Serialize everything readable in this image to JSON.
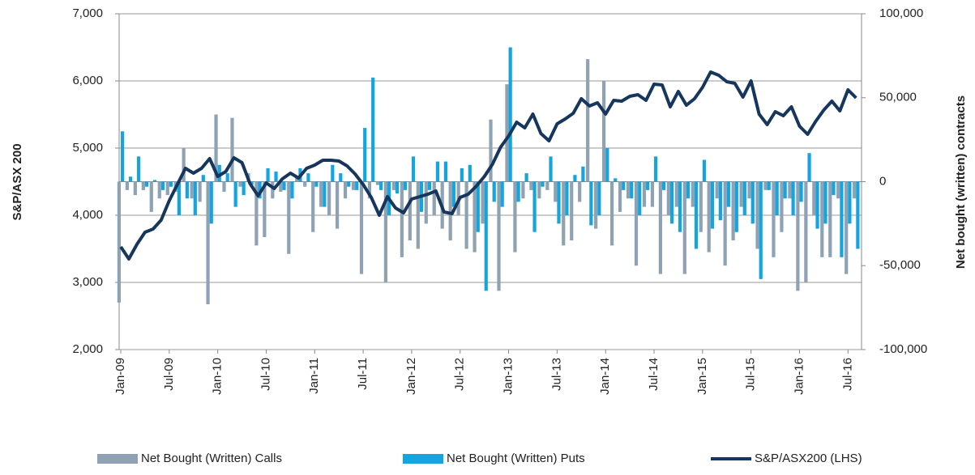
{
  "chart_data": {
    "type": "bar",
    "y_label": "S&P/ASX 200",
    "y2_label": "Net bought (written) contracts",
    "categories": [
      "Jan-09",
      null,
      null,
      null,
      null,
      null,
      "Jul-09",
      null,
      null,
      null,
      null,
      null,
      "Jan-10",
      null,
      null,
      null,
      null,
      null,
      "Jul-10",
      null,
      null,
      null,
      null,
      null,
      "Jan-11",
      null,
      null,
      null,
      null,
      null,
      "Jul-11",
      null,
      null,
      null,
      null,
      null,
      "Jan-12",
      null,
      null,
      null,
      null,
      null,
      "Jul-12",
      null,
      null,
      null,
      null,
      null,
      "Jan-13",
      null,
      null,
      null,
      null,
      null,
      "Jul-13",
      null,
      null,
      null,
      null,
      null,
      "Jan-14",
      null,
      null,
      null,
      null,
      null,
      "Jul-14",
      null,
      null,
      null,
      null,
      null,
      "Jan-15",
      null,
      null,
      null,
      null,
      null,
      "Jul-15",
      null,
      null,
      null,
      null,
      null,
      "Jan-16",
      null,
      null,
      null,
      null,
      null,
      "Jul-16",
      null
    ],
    "ylim": [
      2000,
      7000
    ],
    "yticks": [
      {
        "value": 2000,
        "label": "2,000"
      },
      {
        "value": 3000,
        "label": "3,000"
      },
      {
        "value": 4000,
        "label": "4,000"
      },
      {
        "value": 5000,
        "label": "5,000"
      },
      {
        "value": 6000,
        "label": "6,000"
      },
      {
        "value": 7000,
        "label": "7,000"
      }
    ],
    "y2lim": [
      -100000,
      100000
    ],
    "y2ticks": [
      {
        "value": -100000,
        "label": "-100,000"
      },
      {
        "value": -50000,
        "label": "-50,000"
      },
      0,
      {
        "value": 50000,
        "label": "50,000"
      },
      {
        "value": 100000,
        "label": "100,000"
      }
    ],
    "grid": true,
    "legend": "bottom",
    "series": [
      {
        "name": "Net Bought (Written) Calls",
        "type": "bar",
        "axis": "y2",
        "color": "#8fa2b4",
        "values": [
          -72000,
          -5000,
          -8000,
          -5000,
          -18000,
          -10000,
          -8000,
          -6000,
          20000,
          -10000,
          -12000,
          -73000,
          40000,
          -6000,
          38000,
          -3000,
          5000,
          -38000,
          -33000,
          -10000,
          -6000,
          -43000,
          3000,
          -3000,
          -30000,
          -15000,
          -20000,
          -28000,
          -10000,
          -5000,
          -55000,
          -10000,
          -2000,
          -60000,
          -5000,
          -45000,
          -35000,
          -40000,
          -25000,
          -20000,
          -28000,
          -35000,
          -20000,
          -40000,
          -42000,
          -25000,
          37000,
          -65000,
          58000,
          -42000,
          -10000,
          -5000,
          -10000,
          -5000,
          -12000,
          -38000,
          -35000,
          -12000,
          73000,
          -28000,
          60000,
          -38000,
          -18000,
          -10000,
          -50000,
          -15000,
          -15000,
          -55000,
          -20000,
          -15000,
          -55000,
          -15000,
          -30000,
          -42000,
          -10000,
          -50000,
          -35000,
          -15000,
          -10000,
          -40000,
          -5000,
          -45000,
          -30000,
          -10000,
          -65000,
          -60000,
          -20000,
          -45000,
          -45000,
          -10000,
          -55000,
          -10000
        ]
      },
      {
        "name": "Net Bought (Written) Puts",
        "type": "bar",
        "axis": "y2",
        "color": "#14a5de",
        "values": [
          30000,
          3000,
          15000,
          -3000,
          1000,
          -5000,
          -3000,
          -20000,
          -10000,
          -20000,
          4000,
          -25000,
          10000,
          5000,
          -15000,
          -8000,
          -2000,
          -10000,
          8000,
          6000,
          -5000,
          -10000,
          8000,
          5000,
          -3000,
          -15000,
          10000,
          5000,
          -3000,
          -5000,
          32000,
          62000,
          -5000,
          -20000,
          -7000,
          -5000,
          15000,
          -18000,
          -5000,
          12000,
          12000,
          -15000,
          8000,
          10000,
          -30000,
          -65000,
          -12000,
          -15000,
          80000,
          -12000,
          5000,
          -30000,
          -3000,
          15000,
          -25000,
          -20000,
          4000,
          9000,
          -26000,
          -20000,
          20000,
          2000,
          -5000,
          -10000,
          -20000,
          -5000,
          15000,
          -5000,
          -25000,
          -30000,
          -10000,
          -40000,
          13000,
          -28000,
          -23000,
          -15000,
          -30000,
          -20000,
          -25000,
          -58000,
          -5000,
          -20000,
          -10000,
          -20000,
          -12000,
          17000,
          -28000,
          -25000,
          -8000,
          -45000,
          -25000,
          -40000
        ]
      },
      {
        "name": "S&P/ASX200 (LHS)",
        "type": "line",
        "axis": "y",
        "color": "#17365d",
        "values": [
          3530,
          3349,
          3566,
          3747,
          3795,
          3928,
          4217,
          4458,
          4699,
          4627,
          4699,
          4843,
          4578,
          4651,
          4855,
          4783,
          4470,
          4289,
          4482,
          4398,
          4542,
          4627,
          4554,
          4699,
          4747,
          4819,
          4819,
          4807,
          4735,
          4614,
          4458,
          4265,
          4000,
          4277,
          4108,
          4036,
          4241,
          4277,
          4313,
          4361,
          4048,
          4024,
          4265,
          4313,
          4434,
          4578,
          4759,
          5012,
          5181,
          5386,
          5301,
          5506,
          5217,
          5108,
          5361,
          5434,
          5518,
          5735,
          5627,
          5675,
          5506,
          5711,
          5699,
          5771,
          5795,
          5711,
          5952,
          5940,
          5614,
          5843,
          5639,
          5735,
          5904,
          6133,
          6084,
          5988,
          5964,
          5759,
          6000,
          5506,
          5349,
          5542,
          5482,
          5614,
          5325,
          5205,
          5398,
          5566,
          5699,
          5554,
          5867,
          5747
        ]
      }
    ]
  }
}
